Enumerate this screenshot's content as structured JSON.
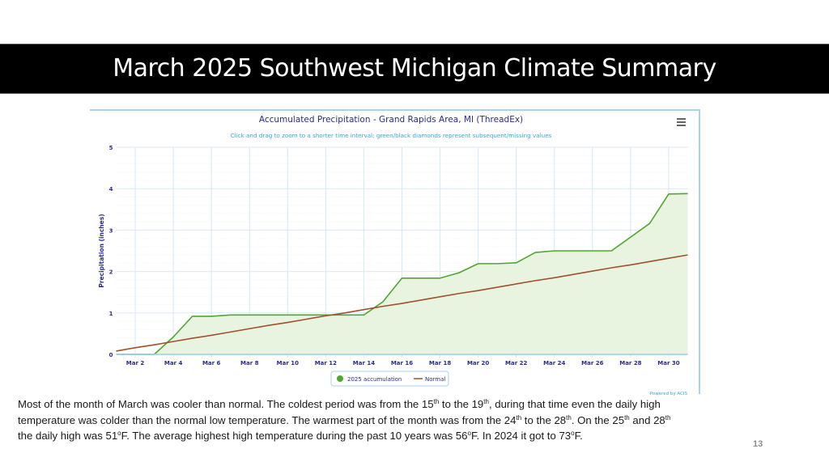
{
  "slide": {
    "title": "March 2025 Southwest Michigan Climate Summary",
    "page_number": "13",
    "summary_lines": [
      [
        {
          "t": "Most of the month of March was cooler than normal.  The coldest period was from the 15"
        },
        {
          "sup": "th"
        },
        {
          "t": " to the 19"
        },
        {
          "sup": "th"
        },
        {
          "t": ", during that time even the daily high"
        }
      ],
      [
        {
          "t": "temperature was colder than the normal low temperature.  The warmest part of the month was from the 24"
        },
        {
          "sup": "th"
        },
        {
          "t": " to the 28"
        },
        {
          "sup": "th"
        },
        {
          "t": ". On the 25"
        },
        {
          "sup": "th"
        },
        {
          "t": " and 28"
        },
        {
          "sup": "th"
        }
      ],
      [
        {
          "t": "the daily high was 51"
        },
        {
          "sup": "o"
        },
        {
          "t": "F.   The average highest high temperature during the past 10 years was 56"
        },
        {
          "sup": "o"
        },
        {
          "t": "F.  In 2024 it got to 73"
        },
        {
          "sup": "o"
        },
        {
          "t": "F."
        }
      ]
    ]
  },
  "chart_data": {
    "type": "area",
    "title": "Accumulated Precipitation - Grand Rapids Area, MI (ThreadEx)",
    "subtitle": "Click and drag to zoom to a shorter time interval; green/black diamonds represent subsequent/missing values",
    "xlabel": "",
    "ylabel": "Precipitation (inches)",
    "ylim": [
      0,
      5
    ],
    "yticks": [
      "0",
      "1",
      "2",
      "3",
      "4",
      "5"
    ],
    "xlim": [
      1,
      31
    ],
    "xticks": [
      {
        "day": 2,
        "label": "Mar 2"
      },
      {
        "day": 4,
        "label": "Mar 4"
      },
      {
        "day": 6,
        "label": "Mar 6"
      },
      {
        "day": 8,
        "label": "Mar 8"
      },
      {
        "day": 10,
        "label": "Mar 10"
      },
      {
        "day": 12,
        "label": "Mar 12"
      },
      {
        "day": 14,
        "label": "Mar 14"
      },
      {
        "day": 16,
        "label": "Mar 16"
      },
      {
        "day": 18,
        "label": "Mar 18"
      },
      {
        "day": 20,
        "label": "Mar 20"
      },
      {
        "day": 22,
        "label": "Mar 22"
      },
      {
        "day": 24,
        "label": "Mar 24"
      },
      {
        "day": 26,
        "label": "Mar 26"
      },
      {
        "day": 28,
        "label": "Mar 28"
      },
      {
        "day": 30,
        "label": "Mar 30"
      }
    ],
    "grid": true,
    "legend_position": "bottom-center",
    "menu_icon": "hamburger-menu-icon",
    "credit": "Powered by ACIS",
    "x": [
      1,
      2,
      3,
      4,
      5,
      6,
      7,
      8,
      9,
      10,
      11,
      12,
      13,
      14,
      15,
      16,
      17,
      18,
      19,
      20,
      21,
      22,
      23,
      24,
      25,
      26,
      27,
      28,
      29,
      30,
      31
    ],
    "series": [
      {
        "name": "2025 accumulation",
        "color": "#4ea72e",
        "fill": "#e8f4e0",
        "marker": "circle",
        "values": [
          0,
          0,
          0,
          0.42,
          0.92,
          0.92,
          0.95,
          0.95,
          0.95,
          0.95,
          0.95,
          0.95,
          0.95,
          0.95,
          1.27,
          1.84,
          1.84,
          1.84,
          1.97,
          2.19,
          2.19,
          2.21,
          2.46,
          2.5,
          2.5,
          2.5,
          2.5,
          2.83,
          3.16,
          3.87,
          3.88
        ]
      },
      {
        "name": "Normal",
        "color": "#a0522d",
        "marker": "line",
        "values": [
          0.08,
          0.16,
          0.23,
          0.31,
          0.39,
          0.46,
          0.54,
          0.62,
          0.7,
          0.77,
          0.85,
          0.93,
          1.0,
          1.08,
          1.16,
          1.23,
          1.31,
          1.39,
          1.47,
          1.54,
          1.62,
          1.7,
          1.78,
          1.85,
          1.93,
          2.01,
          2.09,
          2.16,
          2.24,
          2.32,
          2.4
        ]
      }
    ]
  }
}
